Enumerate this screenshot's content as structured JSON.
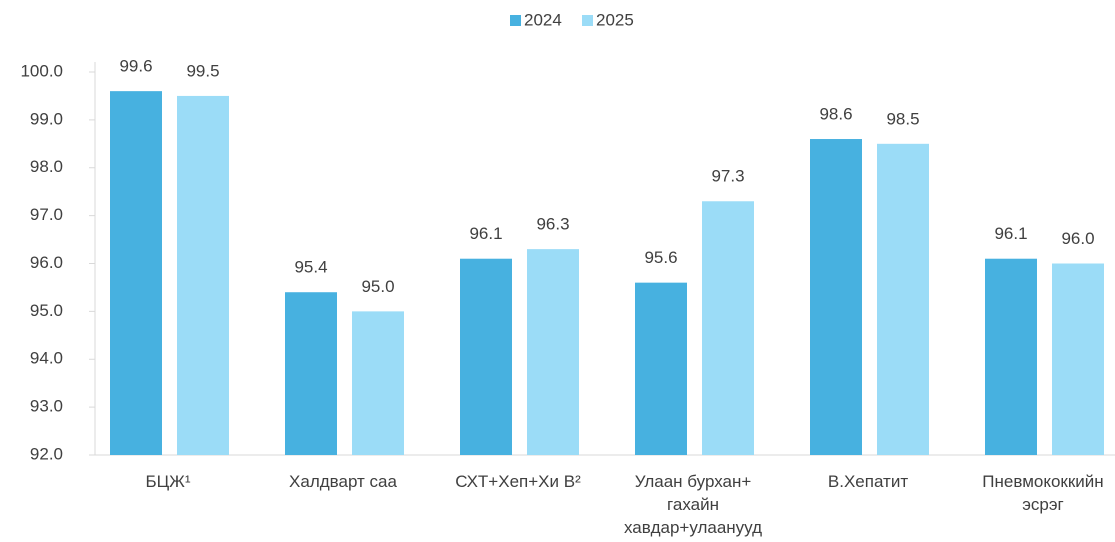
{
  "chart_data": {
    "type": "bar",
    "categories": [
      "БЦЖ¹",
      "Халдварт саа",
      "СХТ+Хеп+Хи B²",
      "Улаан бурхан+ гахайн хавдар+улаанууд",
      "В.Хепатит",
      "Пневмококкийн эсрэг"
    ],
    "series": [
      {
        "name": "2024",
        "color": "#47b1e0",
        "values": [
          99.6,
          95.4,
          96.1,
          95.6,
          98.6,
          96.1
        ],
        "value_labels": [
          "99.6",
          "95.4",
          "96.1",
          "95.6",
          "98.6",
          "96.1"
        ]
      },
      {
        "name": "2025",
        "color": "#9bdcf7",
        "values": [
          99.5,
          95.0,
          96.3,
          97.3,
          98.5,
          96.0
        ],
        "value_labels": [
          "99.5",
          "95.0",
          "96.3",
          "97.3",
          "98.5",
          "96.0"
        ]
      }
    ],
    "ylim": [
      92,
      100
    ],
    "yticks": [
      {
        "value": 92,
        "label": "92.0"
      },
      {
        "value": 93,
        "label": "93.0"
      },
      {
        "value": 94,
        "label": "94.0"
      },
      {
        "value": 95,
        "label": "95.0"
      },
      {
        "value": 96,
        "label": "96.0"
      },
      {
        "value": 97,
        "label": "97.0"
      },
      {
        "value": 98,
        "label": "98.0"
      },
      {
        "value": 99,
        "label": "99.0"
      },
      {
        "value": 100,
        "label": "100.0"
      }
    ],
    "legend": "top"
  }
}
